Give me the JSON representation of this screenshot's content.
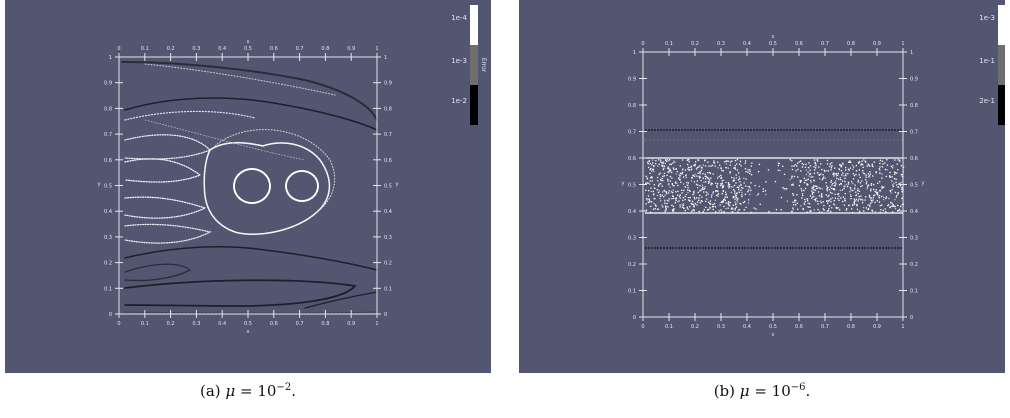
{
  "figure": {
    "panels": [
      {
        "id": "a",
        "caption_prefix": "(a)",
        "mu_symbol": "μ",
        "equals": "=",
        "base": "10",
        "exponent": "−2",
        "period": ".",
        "colorbar": {
          "labels": [
            "1e-4",
            "1e-3",
            "1e-2"
          ],
          "title": "Error",
          "colors": [
            "#ffffff",
            "#6e6e6e",
            "#000000"
          ]
        },
        "axes": {
          "x_label": "x",
          "y_label": "y",
          "x_ticks": [
            "0",
            "0.1",
            "0.2",
            "0.3",
            "0.4",
            "0.5",
            "0.6",
            "0.7",
            "0.8",
            "0.9",
            "1"
          ],
          "y_ticks": [
            "0",
            "0.1",
            "0.2",
            "0.3",
            "0.4",
            "0.5",
            "0.6",
            "0.7",
            "0.8",
            "0.9",
            "1"
          ]
        }
      },
      {
        "id": "b",
        "caption_prefix": "(b)",
        "mu_symbol": "μ",
        "equals": "=",
        "base": "10",
        "exponent": "−6",
        "period": ".",
        "colorbar": {
          "labels": [
            "1e-3",
            "1e-1",
            "2e-1"
          ],
          "title": "Error",
          "colors": [
            "#ffffff",
            "#6e6e6e",
            "#000000"
          ]
        },
        "axes": {
          "x_label": "x",
          "y_label": "y",
          "x_ticks": [
            "0",
            "0.1",
            "0.2",
            "0.3",
            "0.4",
            "0.5",
            "0.6",
            "0.7",
            "0.8",
            "0.9",
            "1"
          ],
          "y_ticks": [
            "0",
            "0.1",
            "0.2",
            "0.3",
            "0.4",
            "0.5",
            "0.6",
            "0.7",
            "0.8",
            "0.9",
            "1"
          ]
        }
      }
    ],
    "background_color": "#525670",
    "axis_color": "#e6e6ee"
  }
}
